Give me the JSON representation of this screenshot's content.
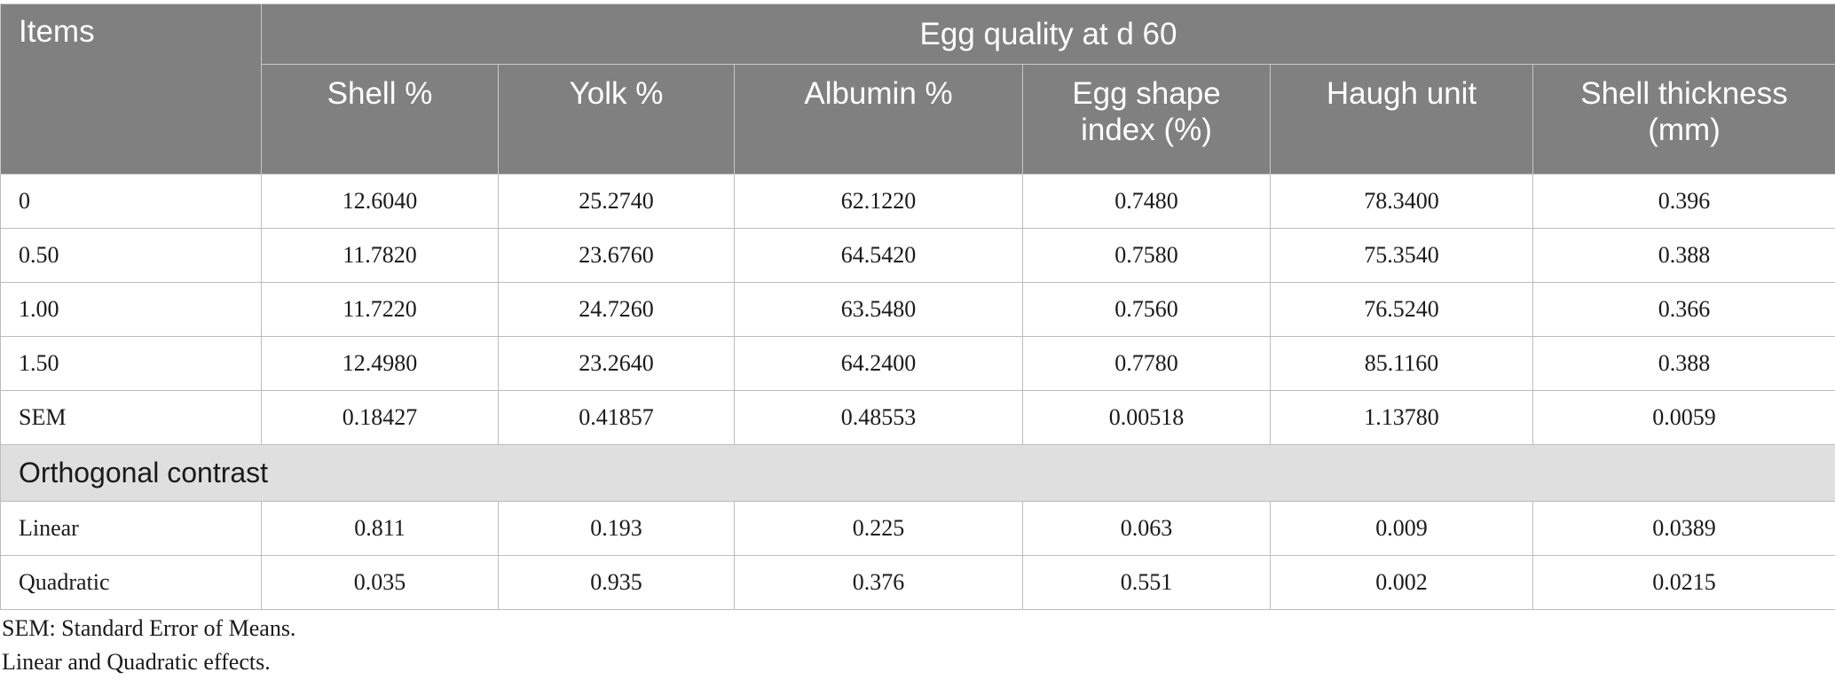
{
  "table": {
    "items_header": "Items",
    "group_header": "Egg quality at d 60",
    "columns": [
      "Shell %",
      "Yolk %",
      "Albumin %",
      "Egg shape index (%)",
      "Haugh unit",
      "Shell thickness (mm)"
    ],
    "rows": [
      {
        "label": "0",
        "values": [
          "12.6040",
          "25.2740",
          "62.1220",
          "0.7480",
          "78.3400",
          "0.396"
        ]
      },
      {
        "label": "0.50",
        "values": [
          "11.7820",
          "23.6760",
          "64.5420",
          "0.7580",
          "75.3540",
          "0.388"
        ]
      },
      {
        "label": "1.00",
        "values": [
          "11.7220",
          "24.7260",
          "63.5480",
          "0.7560",
          "76.5240",
          "0.366"
        ]
      },
      {
        "label": "1.50",
        "values": [
          "12.4980",
          "23.2640",
          "64.2400",
          "0.7780",
          "85.1160",
          "0.388"
        ]
      },
      {
        "label": "SEM",
        "values": [
          "0.18427",
          "0.41857",
          "0.48553",
          "0.00518",
          "1.13780",
          "0.0059"
        ]
      }
    ],
    "section_label": "Orthogonal contrast",
    "contrast_rows": [
      {
        "label": "Linear",
        "values": [
          "0.811",
          "0.193",
          "0.225",
          "0.063",
          "0.009",
          "0.0389"
        ]
      },
      {
        "label": "Quadratic",
        "values": [
          "0.035",
          "0.935",
          "0.376",
          "0.551",
          "0.002",
          "0.0215"
        ]
      }
    ]
  },
  "footnotes": [
    "SEM: Standard Error of Means.",
    "Linear and Quadratic effects."
  ]
}
